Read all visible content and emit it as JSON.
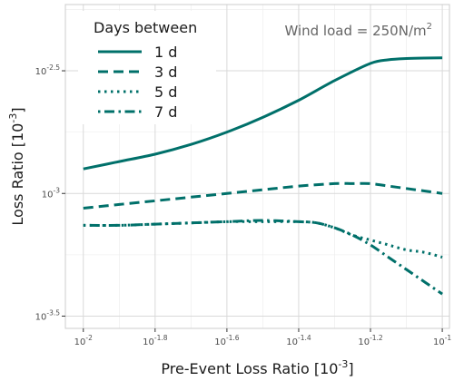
{
  "chart_data": {
    "type": "line",
    "xlabel": "Pre-Event Loss Ratio [10",
    "xlabel_exp": "-3",
    "xlabel_end": "]",
    "ylabel": "Loss Ratio [10",
    "ylabel_exp": "-3",
    "ylabel_end": "]",
    "xscale": "log10",
    "yscale": "log10",
    "xlim_log10": [
      -2.05,
      -0.98
    ],
    "ylim_log10": [
      -3.55,
      -2.23
    ],
    "x_tick_log10": [
      -2,
      -1.8,
      -1.6,
      -1.4,
      -1.2,
      -1
    ],
    "x_tick_labels": [
      {
        "base": "10",
        "exp": "-2"
      },
      {
        "base": "10",
        "exp": "-1.8"
      },
      {
        "base": "10",
        "exp": "-1.6"
      },
      {
        "base": "10",
        "exp": "-1.4"
      },
      {
        "base": "10",
        "exp": "-1.2"
      },
      {
        "base": "10",
        "exp": "-1"
      }
    ],
    "y_tick_log10": [
      -3.5,
      -3,
      -2.5
    ],
    "y_tick_labels": [
      {
        "base": "10",
        "exp": "-3.5"
      },
      {
        "base": "10",
        "exp": "-3"
      },
      {
        "base": "10",
        "exp": "-2.5"
      }
    ],
    "grid": true,
    "legend": {
      "title": "Days between",
      "placement": "top-left",
      "entries": [
        "1 d",
        "3 d",
        "5 d",
        "7 d"
      ]
    },
    "annotation": {
      "text": "Wind load = 250N/m",
      "sup": "2",
      "placement": "top-right"
    },
    "series_color": "#00706a",
    "series": [
      {
        "name": "1 d",
        "dash": "solid",
        "x_log10": [
          -2.0,
          -1.9,
          -1.8,
          -1.7,
          -1.6,
          -1.5,
          -1.4,
          -1.3,
          -1.2,
          -1.15,
          -1.1,
          -1.05,
          -1.0
        ],
        "y_log10": [
          -2.9,
          -2.87,
          -2.84,
          -2.8,
          -2.75,
          -2.69,
          -2.62,
          -2.54,
          -2.47,
          -2.455,
          -2.45,
          -2.448,
          -2.447
        ]
      },
      {
        "name": "3 d",
        "dash": "dashed",
        "x_log10": [
          -2.0,
          -1.9,
          -1.8,
          -1.7,
          -1.6,
          -1.5,
          -1.4,
          -1.3,
          -1.25,
          -1.2,
          -1.15,
          -1.1,
          -1.05,
          -1.0
        ],
        "y_log10": [
          -3.06,
          -3.045,
          -3.03,
          -3.015,
          -3.0,
          -2.985,
          -2.97,
          -2.96,
          -2.96,
          -2.96,
          -2.97,
          -2.98,
          -2.99,
          -3.0
        ]
      },
      {
        "name": "5 d",
        "dash": "dotted",
        "x_log10": [
          -2.0,
          -1.9,
          -1.8,
          -1.7,
          -1.6,
          -1.5,
          -1.4,
          -1.35,
          -1.3,
          -1.25,
          -1.2,
          -1.15,
          -1.1,
          -1.05,
          -1.0
        ],
        "y_log10": [
          -3.13,
          -3.13,
          -3.125,
          -3.12,
          -3.115,
          -3.115,
          -3.115,
          -3.12,
          -3.14,
          -3.17,
          -3.19,
          -3.21,
          -3.23,
          -3.24,
          -3.26
        ]
      },
      {
        "name": "7 d",
        "dash": "dotdash",
        "x_log10": [
          -2.0,
          -1.9,
          -1.8,
          -1.7,
          -1.6,
          -1.5,
          -1.4,
          -1.35,
          -1.3,
          -1.25,
          -1.2,
          -1.15,
          -1.1,
          -1.05,
          -1.0
        ],
        "y_log10": [
          -3.13,
          -3.13,
          -3.125,
          -3.12,
          -3.115,
          -3.11,
          -3.115,
          -3.12,
          -3.14,
          -3.17,
          -3.21,
          -3.26,
          -3.31,
          -3.36,
          -3.41
        ]
      }
    ]
  }
}
